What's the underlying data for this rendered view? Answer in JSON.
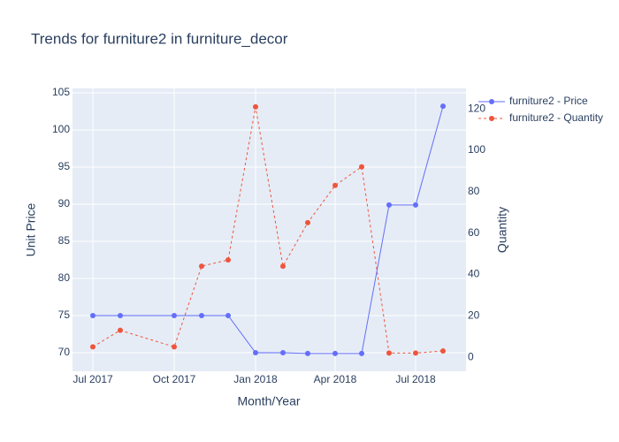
{
  "chart_data": {
    "type": "line",
    "title": "Trends for furniture2 in furniture_decor",
    "x_label": "Month/Year",
    "y_label": "Unit Price",
    "y2_label": "Quantity",
    "x": [
      "2017-07",
      "2017-08",
      "2017-10",
      "2017-11",
      "2017-12",
      "2018-01",
      "2018-02",
      "2018-03",
      "2018-04",
      "2018-05",
      "2018-06",
      "2018-07",
      "2018-08"
    ],
    "series": [
      {
        "name": "furniture2 - Price",
        "color": "#636efa",
        "dash": "solid",
        "values": [
          75,
          75,
          75,
          75,
          75,
          70,
          70,
          69.9,
          69.9,
          69.9,
          89.9,
          89.9,
          103.2
        ]
      },
      {
        "name": "furniture2 - Quantity",
        "color": "#ef553b",
        "dash": "dashed",
        "axis": "y2",
        "values": [
          5,
          13,
          5,
          44,
          47,
          121,
          44,
          65,
          83,
          92,
          2,
          2,
          3
        ]
      }
    ],
    "xlim": [
      "2017-06-08",
      "2018-08-27"
    ],
    "xticks": [
      {
        "value": "2017-07",
        "label": "Jul 2017"
      },
      {
        "value": "2017-10",
        "label": "Oct 2017"
      },
      {
        "value": "2018-01",
        "label": "Jan 2018"
      },
      {
        "value": "2018-04",
        "label": "Apr 2018"
      },
      {
        "value": "2018-07",
        "label": "Jul 2018"
      }
    ],
    "ylim": [
      67.5,
      105.6
    ],
    "yticks": [
      70,
      75,
      80,
      85,
      90,
      95,
      100,
      105
    ],
    "y2lim": [
      -6.8,
      129.9
    ],
    "y2ticks": [
      0,
      20,
      40,
      60,
      80,
      100,
      120
    ],
    "grid": true,
    "legend": "top-right"
  }
}
